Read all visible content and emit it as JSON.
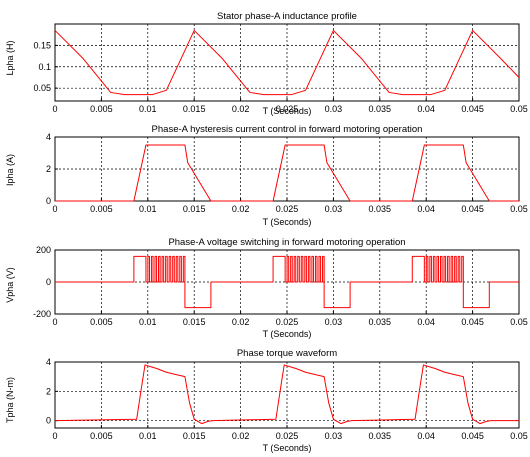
{
  "chart_data": [
    {
      "type": "line",
      "title": "Stator phase-A inductance profile",
      "xlabel": "T (Seconds)",
      "ylabel": "Lpha (H)",
      "xlim": [
        0,
        0.05
      ],
      "ylim": [
        0.02,
        0.2
      ],
      "xticks": [
        "0",
        "0.005",
        "0.01",
        "0.015",
        "0.02",
        "0.025",
        "0.03",
        "0.035",
        "0.04",
        "0.045",
        "0.05"
      ],
      "yticks": [
        {
          "value": 0.05,
          "label": "0.05"
        },
        {
          "value": 0.1,
          "label": "0.1"
        },
        {
          "value": 0.15,
          "label": "0.15"
        }
      ],
      "grid": true,
      "color": "#ff0000",
      "series": [
        {
          "x": [
            0,
            0.003,
            0.006,
            0.0075,
            0.009,
            0.0105,
            0.012,
            0.015,
            0.018,
            0.021,
            0.0225,
            0.024,
            0.0255,
            0.027,
            0.03,
            0.033,
            0.036,
            0.0375,
            0.039,
            0.0405,
            0.042,
            0.045,
            0.048,
            0.05
          ],
          "y": [
            0.185,
            0.12,
            0.04,
            0.035,
            0.035,
            0.035,
            0.045,
            0.185,
            0.12,
            0.04,
            0.035,
            0.035,
            0.035,
            0.045,
            0.185,
            0.12,
            0.04,
            0.035,
            0.035,
            0.035,
            0.045,
            0.185,
            0.12,
            0.075
          ]
        }
      ]
    },
    {
      "type": "line",
      "title": "Phase-A hysteresis current control in forward motoring operation",
      "xlabel": "T (Seconds)",
      "ylabel": "Ipha (A)",
      "xlim": [
        0,
        0.05
      ],
      "ylim": [
        0,
        4
      ],
      "xticks": [
        "0",
        "0.005",
        "0.01",
        "0.015",
        "0.02",
        "0.025",
        "0.03",
        "0.035",
        "0.04",
        "0.045",
        "0.05"
      ],
      "yticks": [
        {
          "value": 0,
          "label": "0"
        },
        {
          "value": 2,
          "label": "2"
        },
        {
          "value": 4,
          "label": "4"
        }
      ],
      "grid": true,
      "color": "#ff0000",
      "series": [
        {
          "x": [
            0,
            0.0085,
            0.0098,
            0.014,
            0.0143,
            0.0168,
            0.0235,
            0.0248,
            0.029,
            0.0293,
            0.0318,
            0.0385,
            0.0398,
            0.044,
            0.0443,
            0.0468,
            0.05
          ],
          "y": [
            0,
            0,
            3.5,
            3.5,
            2.4,
            0,
            0,
            3.5,
            3.5,
            2.4,
            0,
            0,
            3.5,
            3.5,
            2.4,
            0,
            0
          ]
        }
      ]
    },
    {
      "type": "line",
      "title": "Phase-A voltage switching in forward motoring operation",
      "xlabel": "T (Seconds)",
      "ylabel": "Vpha (V)",
      "xlim": [
        0,
        0.05
      ],
      "ylim": [
        -200,
        200
      ],
      "xticks": [
        "0",
        "0.005",
        "0.01",
        "0.015",
        "0.02",
        "0.025",
        "0.03",
        "0.035",
        "0.04",
        "0.045",
        "0.05"
      ],
      "yticks": [
        {
          "value": -200,
          "label": "-200"
        },
        {
          "value": 0,
          "label": "0"
        },
        {
          "value": 200,
          "label": "200"
        }
      ],
      "grid": true,
      "color": "#ff0000",
      "pulses": [
        {
          "on": 0.0085,
          "chop_start": 0.0098,
          "chop_end": 0.014,
          "off": 0.014,
          "neg_end": 0.0168
        },
        {
          "on": 0.0235,
          "chop_start": 0.0248,
          "chop_end": 0.029,
          "off": 0.029,
          "neg_end": 0.0318
        },
        {
          "on": 0.0385,
          "chop_start": 0.0398,
          "chop_end": 0.044,
          "off": 0.044,
          "neg_end": 0.0468
        }
      ],
      "levels": {
        "high": 160,
        "low": -160,
        "zero": 0
      }
    },
    {
      "type": "line",
      "title": "Phase torque waveform",
      "xlabel": "T (Seconds)",
      "ylabel": "Tpha (N-m)",
      "xlim": [
        0,
        0.05
      ],
      "ylim": [
        -0.5,
        4
      ],
      "xticks": [
        "0",
        "0.005",
        "0.01",
        "0.015",
        "0.02",
        "0.025",
        "0.03",
        "0.035",
        "0.04",
        "0.045",
        "0.05"
      ],
      "yticks": [
        {
          "value": 0,
          "label": "0"
        },
        {
          "value": 2,
          "label": "2"
        },
        {
          "value": 4,
          "label": "4"
        }
      ],
      "grid": true,
      "color": "#ff0000",
      "series": [
        {
          "x": [
            0,
            0.0088,
            0.0094,
            0.0097,
            0.0102,
            0.011,
            0.012,
            0.013,
            0.014,
            0.0145,
            0.015,
            0.0158,
            0.0165,
            0.017,
            0.0238,
            0.0244,
            0.0247,
            0.0252,
            0.026,
            0.027,
            0.028,
            0.029,
            0.0295,
            0.03,
            0.0308,
            0.0315,
            0.032,
            0.0388,
            0.0394,
            0.0397,
            0.0402,
            0.041,
            0.042,
            0.043,
            0.044,
            0.0445,
            0.045,
            0.0458,
            0.0465,
            0.047,
            0.05
          ],
          "y": [
            0,
            0.1,
            2.6,
            3.8,
            3.7,
            3.55,
            3.3,
            3.15,
            3.0,
            1.2,
            0.1,
            -0.2,
            -0.05,
            0,
            0.1,
            2.6,
            3.8,
            3.7,
            3.55,
            3.3,
            3.15,
            3.0,
            1.2,
            0.1,
            -0.2,
            -0.05,
            0,
            0.1,
            2.6,
            3.8,
            3.7,
            3.55,
            3.3,
            3.15,
            3.0,
            1.2,
            0.1,
            -0.2,
            -0.05,
            0,
            0
          ]
        }
      ]
    }
  ]
}
